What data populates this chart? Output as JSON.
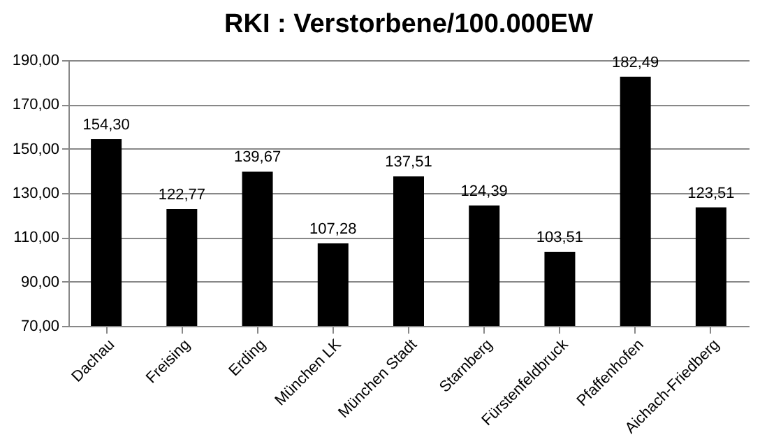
{
  "chart_data": {
    "type": "bar",
    "title": "RKI : Verstorbene/100.000EW",
    "categories": [
      "Dachau",
      "Freising",
      "Erding",
      "München LK",
      "München Stadt",
      "Starnberg",
      "Fürstenfeldbruck",
      "Pfaffenhofen",
      "Aichach-Friedberg"
    ],
    "values": [
      154.3,
      122.77,
      139.67,
      107.28,
      137.51,
      124.39,
      103.51,
      182.49,
      123.51
    ],
    "value_labels": [
      "154,30",
      "122,77",
      "139,67",
      "107,28",
      "137,51",
      "124,39",
      "103,51",
      "182,49",
      "123,51"
    ],
    "color": "#000000",
    "ylim": [
      70,
      190
    ],
    "yticks": [
      {
        "value": 70,
        "label": "70,00"
      },
      {
        "value": 90,
        "label": "90,00"
      },
      {
        "value": 110,
        "label": "110,00"
      },
      {
        "value": 130,
        "label": "130,00"
      },
      {
        "value": 150,
        "label": "150,00"
      },
      {
        "value": 170,
        "label": "170,00"
      },
      {
        "value": 190,
        "label": "190,00"
      }
    ],
    "grid": "y"
  }
}
